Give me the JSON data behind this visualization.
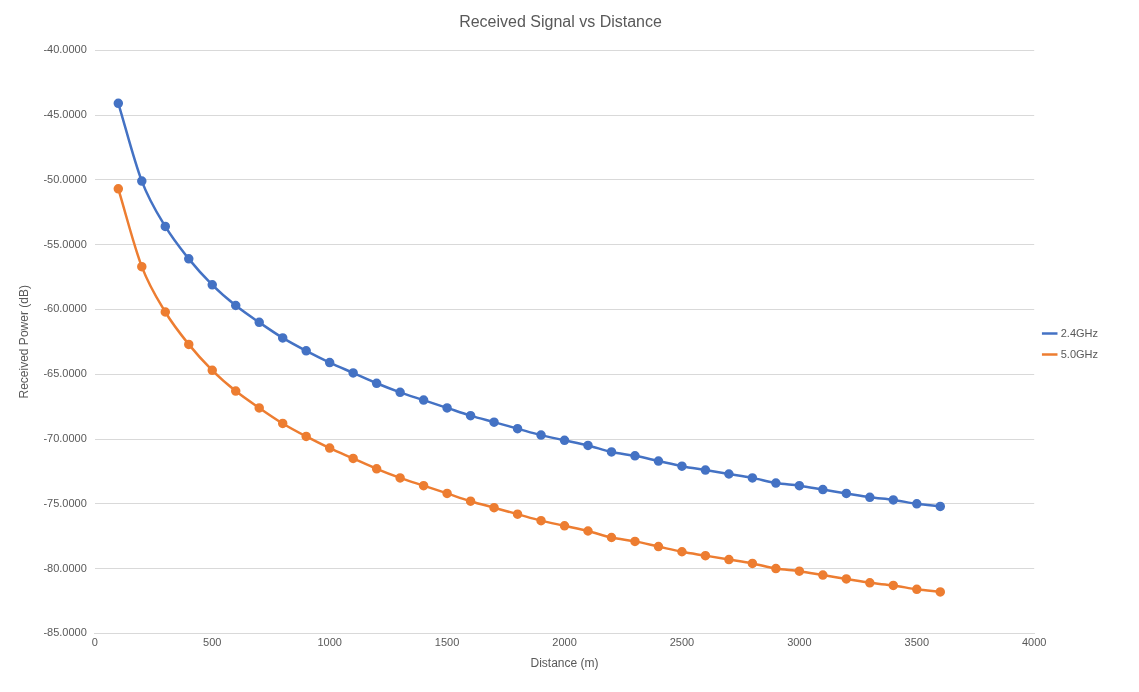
{
  "chart_data": {
    "type": "line",
    "title": "Received Signal vs Distance",
    "xlabel": "Distance (m)",
    "ylabel": "Received Power (dB)",
    "x": [
      100,
      200,
      300,
      400,
      500,
      600,
      700,
      800,
      900,
      1000,
      1100,
      1200,
      1300,
      1400,
      1500,
      1600,
      1700,
      1800,
      1900,
      2000,
      2100,
      2200,
      2300,
      2400,
      2500,
      2600,
      2700,
      2800,
      2900,
      3000,
      3100,
      3200,
      3300,
      3400,
      3500,
      3600
    ],
    "series": [
      {
        "name": "2.4GHz",
        "color": "#4472c4",
        "values": [
          -44.1,
          -50.1,
          -53.6,
          -56.1,
          -58.1,
          -59.7,
          -61.0,
          -62.2,
          -63.2,
          -64.1,
          -64.9,
          -65.7,
          -66.4,
          -67.0,
          -67.6,
          -68.2,
          -68.7,
          -69.2,
          -69.7,
          -70.1,
          -70.5,
          -71.0,
          -71.3,
          -71.7,
          -72.1,
          -72.4,
          -72.7,
          -73.0,
          -73.4,
          -73.6,
          -73.9,
          -74.2,
          -74.5,
          -74.7,
          -75.0,
          -75.2
        ]
      },
      {
        "name": "5.0GHz",
        "color": "#ed7d31",
        "values": [
          -50.7,
          -56.7,
          -60.2,
          -62.7,
          -64.7,
          -66.3,
          -67.6,
          -68.8,
          -69.8,
          -70.7,
          -71.5,
          -72.3,
          -73.0,
          -73.6,
          -74.2,
          -74.8,
          -75.3,
          -75.8,
          -76.3,
          -76.7,
          -77.1,
          -77.6,
          -77.9,
          -78.3,
          -78.7,
          -79.0,
          -79.3,
          -79.6,
          -80.0,
          -80.2,
          -80.5,
          -80.8,
          -81.1,
          -81.3,
          -81.6,
          -81.8
        ]
      }
    ],
    "xlim": [
      0,
      4000
    ],
    "xticks": [
      0,
      500,
      1000,
      1500,
      2000,
      2500,
      3000,
      3500,
      4000
    ],
    "ylim": [
      -85,
      -40
    ],
    "yticks": [
      {
        "value": -85,
        "label": "-85.0000"
      },
      {
        "value": -80,
        "label": "-80.0000"
      },
      {
        "value": -75,
        "label": "-75.0000"
      },
      {
        "value": -70,
        "label": "-70.0000"
      },
      {
        "value": -65,
        "label": "-65.0000"
      },
      {
        "value": -60,
        "label": "-60.0000"
      },
      {
        "value": -55,
        "label": "-55.0000"
      },
      {
        "value": -50,
        "label": "-50.0000"
      },
      {
        "value": -45,
        "label": "-45.0000"
      },
      {
        "value": -40,
        "label": "-40.0000"
      }
    ],
    "grid": "y",
    "legend": "right",
    "marker": "circle",
    "line_style": "solid"
  }
}
